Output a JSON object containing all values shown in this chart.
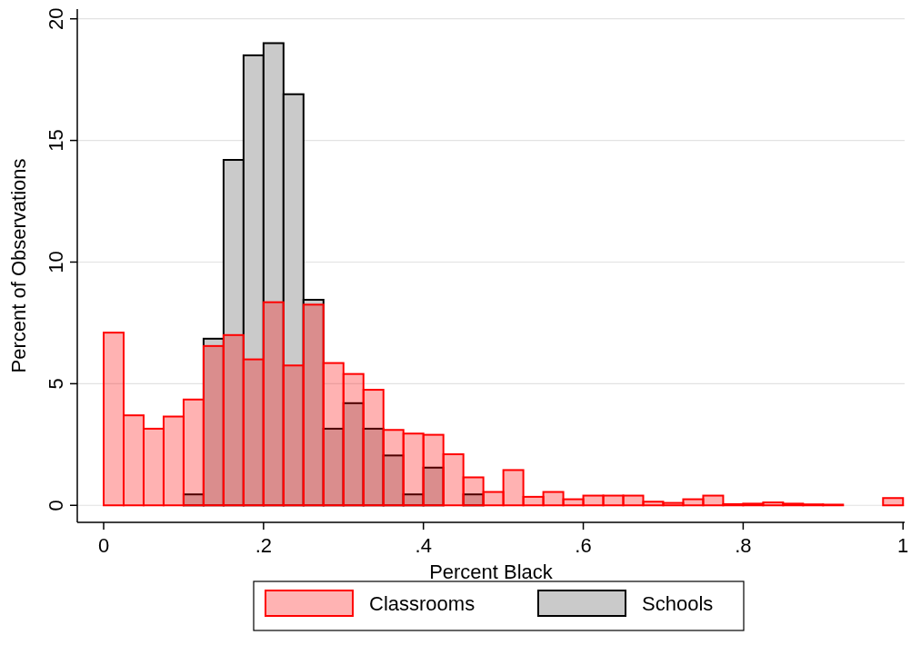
{
  "chart_data": {
    "type": "histogram",
    "xlabel": "Percent Black",
    "ylabel": "Percent of Observations",
    "bins": [
      0,
      0.025,
      0.05,
      0.075,
      0.1,
      0.125,
      0.15,
      0.175,
      0.2,
      0.225,
      0.25,
      0.275,
      0.3,
      0.325,
      0.35,
      0.375,
      0.4,
      0.425,
      0.45,
      0.475,
      0.5,
      0.525,
      0.55,
      0.575,
      0.6,
      0.625,
      0.65,
      0.675,
      0.7,
      0.725,
      0.75,
      0.775,
      0.8,
      0.825,
      0.85,
      0.875,
      0.9,
      0.925,
      0.95,
      0.975,
      1
    ],
    "series": [
      {
        "name": "Classrooms",
        "color": "#ffb3b3",
        "values": [
          7.1,
          3.7,
          3.15,
          3.65,
          4.35,
          6.55,
          7.0,
          6.0,
          8.35,
          5.75,
          8.25,
          5.85,
          5.4,
          4.75,
          3.1,
          2.95,
          2.9,
          2.1,
          1.15,
          0.55,
          1.45,
          0.35,
          0.55,
          0.25,
          0.4,
          0.4,
          0.4,
          0.15,
          0.1,
          0.25,
          0.4,
          0.05,
          0.07,
          0.12,
          0.07,
          0.04,
          0.03,
          0,
          0,
          0.3
        ]
      },
      {
        "name": "Schools",
        "color": "#cacaca",
        "values": [
          0,
          0,
          0,
          0,
          0.45,
          6.85,
          14.2,
          18.5,
          19.0,
          16.9,
          8.45,
          3.15,
          4.2,
          3.15,
          2.05,
          0.45,
          1.55,
          0,
          0.45,
          0,
          0,
          0,
          0,
          0,
          0,
          0,
          0,
          0,
          0,
          0,
          0,
          0,
          0,
          0,
          0,
          0,
          0,
          0,
          0,
          0
        ]
      }
    ],
    "xlim": [
      -0.033,
      1.002
    ],
    "xticks": [
      0,
      {
        "value": 0.2,
        "label": ".2"
      },
      {
        "value": 0.4,
        "label": ".4"
      },
      {
        "value": 0.6,
        "label": ".6"
      },
      {
        "value": 0.8,
        "label": ".8"
      },
      1
    ],
    "ylim": [
      -0.7,
      20.4
    ],
    "yticks": [
      0,
      5,
      10,
      15,
      20
    ],
    "grid": "y",
    "legend": "bottom"
  }
}
